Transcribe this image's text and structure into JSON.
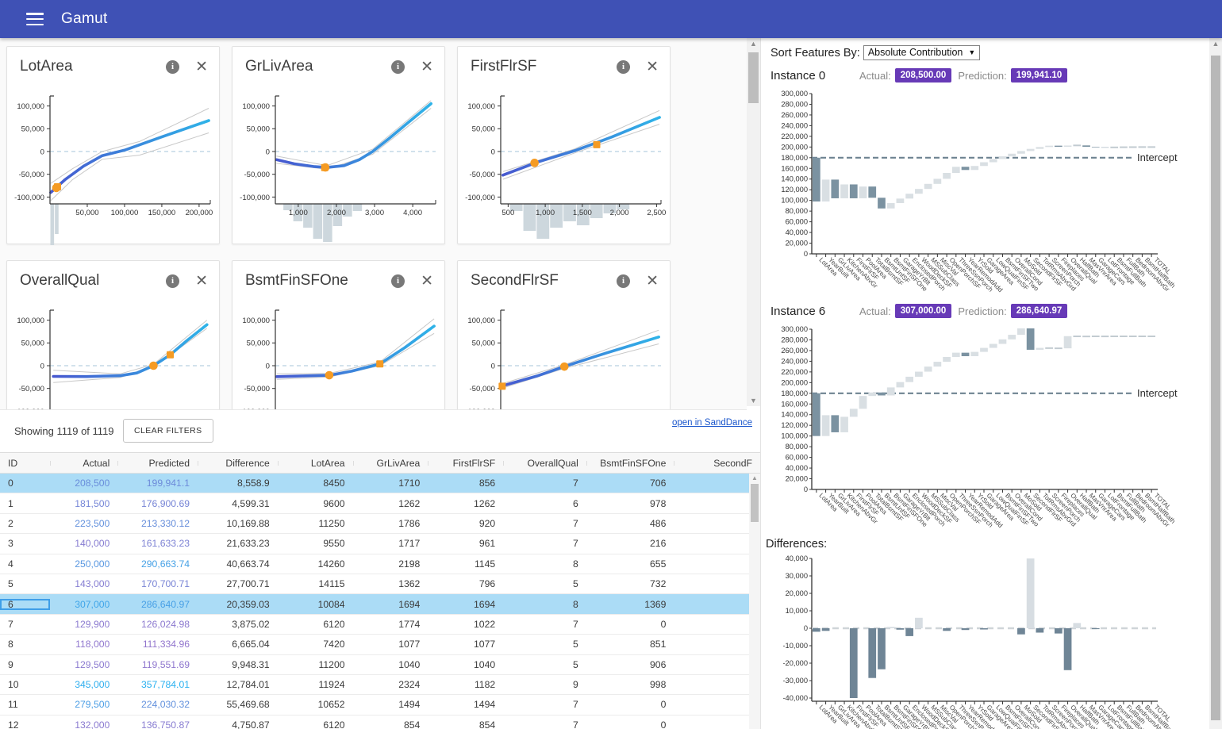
{
  "app": {
    "title": "Gamut"
  },
  "colors": {
    "topbar": "#3f51b5",
    "badge": "#673ab7",
    "highlight_row": "#abdcf6",
    "bar_dark": "#7b92a1",
    "bar_light": "#d9dfe3",
    "bar_flat": "#c2cbd1",
    "intercept_line": "#6d8291",
    "diff_dark": "#6f8596",
    "diff_light": "#d7dde2",
    "orange_marker": "#f59b23",
    "hist": "#cdd7dd",
    "line_start": "#4758cf",
    "line_end": "#2fb3e8",
    "zero_dash": "#c3d9e6",
    "band": "#c8c8c8"
  },
  "feature_cards": [
    {
      "title": "LotArea",
      "x_domain": [
        0,
        215000
      ],
      "x_ticks": [
        50000,
        100000,
        150000,
        200000
      ],
      "y_ticks": [
        100000,
        50000,
        0,
        -50000,
        -100000
      ],
      "line": [
        [
          1000,
          -90000
        ],
        [
          20000,
          -62000
        ],
        [
          45000,
          -32000
        ],
        [
          70000,
          -9000
        ],
        [
          100000,
          3000
        ],
        [
          150000,
          32000
        ],
        [
          213000,
          68000
        ]
      ],
      "band_upper": [
        [
          1000,
          -70000
        ],
        [
          30000,
          -38000
        ],
        [
          70000,
          0
        ],
        [
          120000,
          22000
        ],
        [
          213000,
          95000
        ]
      ],
      "band_lower": [
        [
          1000,
          -108000
        ],
        [
          30000,
          -62000
        ],
        [
          70000,
          -17000
        ],
        [
          120000,
          -8000
        ],
        [
          213000,
          41000
        ]
      ],
      "circle": [
        8450,
        -80000
      ],
      "square": [
        10084,
        -77500
      ],
      "hist": [
        [
          0,
          6000,
          55
        ],
        [
          6000,
          12000,
          38
        ]
      ]
    },
    {
      "title": "GrLivArea",
      "x_domain": [
        400,
        4600
      ],
      "x_ticks": [
        1000,
        2000,
        3000,
        4000
      ],
      "y_ticks": [
        100000,
        50000,
        0,
        -50000,
        -100000
      ],
      "line": [
        [
          430,
          -18000
        ],
        [
          900,
          -27000
        ],
        [
          1400,
          -33000
        ],
        [
          1750,
          -35000
        ],
        [
          2200,
          -31000
        ],
        [
          2600,
          -18000
        ],
        [
          2950,
          0
        ],
        [
          3400,
          30000
        ],
        [
          3900,
          65000
        ],
        [
          4480,
          105000
        ]
      ],
      "band_upper": [
        [
          430,
          -10000
        ],
        [
          1750,
          -31000
        ],
        [
          2950,
          5000
        ],
        [
          4480,
          112000
        ]
      ],
      "band_lower": [
        [
          430,
          -26000
        ],
        [
          1750,
          -39000
        ],
        [
          2950,
          -6000
        ],
        [
          4480,
          95000
        ]
      ],
      "circle": [
        1710,
        -35000
      ],
      "square": [
        1694,
        -35200
      ],
      "hist": [
        [
          600,
          860,
          8
        ],
        [
          860,
          1120,
          22
        ],
        [
          1120,
          1380,
          30
        ],
        [
          1380,
          1640,
          44
        ],
        [
          1640,
          1900,
          48
        ],
        [
          1900,
          2160,
          28
        ],
        [
          2160,
          2420,
          16
        ],
        [
          2420,
          2680,
          9
        ]
      ]
    },
    {
      "title": "FirstFlrSF",
      "x_domain": [
        400,
        2560
      ],
      "x_ticks": [
        500,
        1000,
        1500,
        2000,
        2500
      ],
      "y_ticks": [
        100000,
        50000,
        0,
        -50000,
        -100000
      ],
      "line": [
        [
          430,
          -52000
        ],
        [
          900,
          -23000
        ],
        [
          1400,
          2000
        ],
        [
          1900,
          32000
        ],
        [
          2540,
          75000
        ]
      ],
      "band_upper": [
        [
          430,
          -44000
        ],
        [
          1400,
          6000
        ],
        [
          2540,
          90000
        ]
      ],
      "band_lower": [
        [
          430,
          -61000
        ],
        [
          1400,
          -3000
        ],
        [
          2540,
          60000
        ]
      ],
      "circle": [
        856,
        -25000
      ],
      "square": [
        1694,
        15000
      ],
      "hist": [
        [
          520,
          700,
          9
        ],
        [
          700,
          880,
          34
        ],
        [
          880,
          1060,
          44
        ],
        [
          1060,
          1240,
          30
        ],
        [
          1240,
          1420,
          22
        ],
        [
          1420,
          1600,
          27
        ],
        [
          1600,
          1780,
          18
        ],
        [
          1780,
          1960,
          12
        ],
        [
          1960,
          2140,
          7
        ]
      ]
    },
    {
      "title": "OverallQual",
      "x_domain": [
        0.8,
        10.4
      ],
      "x_ticks": [],
      "y_ticks": [
        100000,
        50000,
        0,
        -50000,
        -100000
      ],
      "line": [
        [
          1,
          -23500
        ],
        [
          3,
          -23800
        ],
        [
          5,
          -22000
        ],
        [
          6,
          -16000
        ],
        [
          7,
          0
        ],
        [
          8,
          24000
        ],
        [
          9,
          55000
        ],
        [
          10.2,
          90000
        ]
      ],
      "band_upper": [
        [
          1,
          -10000
        ],
        [
          5,
          -18000
        ],
        [
          7,
          3000
        ],
        [
          10.2,
          100000
        ]
      ],
      "band_lower": [
        [
          1,
          -37000
        ],
        [
          5,
          -26000
        ],
        [
          7,
          -3000
        ],
        [
          10.2,
          82000
        ]
      ],
      "circle": [
        7,
        0
      ],
      "square": [
        8,
        24000
      ],
      "hist": []
    },
    {
      "title": "BsmtFinSFOne",
      "x_domain": [
        0,
        2100
      ],
      "x_ticks": [],
      "y_ticks": [
        100000,
        50000,
        0,
        -50000,
        -100000
      ],
      "line": [
        [
          20,
          -24000
        ],
        [
          350,
          -22500
        ],
        [
          706,
          -21000
        ],
        [
          1000,
          -12000
        ],
        [
          1369,
          4000
        ],
        [
          1700,
          40000
        ],
        [
          2080,
          87000
        ]
      ],
      "band_upper": [
        [
          20,
          -18000
        ],
        [
          706,
          -17000
        ],
        [
          1369,
          8000
        ],
        [
          2080,
          103000
        ]
      ],
      "band_lower": [
        [
          20,
          -30000
        ],
        [
          706,
          -25000
        ],
        [
          1369,
          0
        ],
        [
          2080,
          71000
        ]
      ],
      "circle": [
        706,
        -21000
      ],
      "square": [
        1369,
        4000
      ],
      "hist": []
    },
    {
      "title": "SecondFlrSF",
      "x_domain": [
        0,
        2150
      ],
      "x_ticks": [],
      "y_ticks": [
        100000,
        50000,
        0,
        -50000,
        -100000
      ],
      "line": [
        [
          10,
          -45000
        ],
        [
          500,
          -22000
        ],
        [
          854,
          -2000
        ],
        [
          1300,
          22000
        ],
        [
          1700,
          42000
        ],
        [
          2120,
          63000
        ]
      ],
      "band_upper": [
        [
          10,
          -40000
        ],
        [
          854,
          2000
        ],
        [
          2120,
          78000
        ]
      ],
      "band_lower": [
        [
          10,
          -50000
        ],
        [
          854,
          -6000
        ],
        [
          2120,
          48000
        ]
      ],
      "circle": [
        854,
        -2000
      ],
      "square": [
        20,
        -45000
      ],
      "hist": []
    }
  ],
  "left_toolbar": {
    "showing_text": "Showing 1119 of 1119",
    "clear_filters_label": "CLEAR FILTERS",
    "sanddance_link": "open in SandDance"
  },
  "table": {
    "columns": [
      "ID",
      "Actual",
      "Predicted",
      "Difference",
      "LotArea",
      "GrLivArea",
      "FirstFlrSF",
      "OverallQual",
      "BsmtFinSFOne",
      "SecondF"
    ],
    "rows": [
      {
        "id": "0",
        "actual": "208,500",
        "predicted": "199,941.1",
        "difference": "8,558.9",
        "lotarea": "8450",
        "grlivarea": "1710",
        "firstflrsf": "856",
        "overallqual": "7",
        "bsmtfinsfone": "706"
      },
      {
        "id": "1",
        "actual": "181,500",
        "predicted": "176,900.69",
        "difference": "4,599.31",
        "lotarea": "9600",
        "grlivarea": "1262",
        "firstflrsf": "1262",
        "overallqual": "6",
        "bsmtfinsfone": "978"
      },
      {
        "id": "2",
        "actual": "223,500",
        "predicted": "213,330.12",
        "difference": "10,169.88",
        "lotarea": "11250",
        "grlivarea": "1786",
        "firstflrsf": "920",
        "overallqual": "7",
        "bsmtfinsfone": "486"
      },
      {
        "id": "3",
        "actual": "140,000",
        "predicted": "161,633.23",
        "difference": "21,633.23",
        "lotarea": "9550",
        "grlivarea": "1717",
        "firstflrsf": "961",
        "overallqual": "7",
        "bsmtfinsfone": "216"
      },
      {
        "id": "4",
        "actual": "250,000",
        "predicted": "290,663.74",
        "difference": "40,663.74",
        "lotarea": "14260",
        "grlivarea": "2198",
        "firstflrsf": "1145",
        "overallqual": "8",
        "bsmtfinsfone": "655"
      },
      {
        "id": "5",
        "actual": "143,000",
        "predicted": "170,700.71",
        "difference": "27,700.71",
        "lotarea": "14115",
        "grlivarea": "1362",
        "firstflrsf": "796",
        "overallqual": "5",
        "bsmtfinsfone": "732"
      },
      {
        "id": "6",
        "actual": "307,000",
        "predicted": "286,640.97",
        "difference": "20,359.03",
        "lotarea": "10084",
        "grlivarea": "1694",
        "firstflrsf": "1694",
        "overallqual": "8",
        "bsmtfinsfone": "1369"
      },
      {
        "id": "7",
        "actual": "129,900",
        "predicted": "126,024.98",
        "difference": "3,875.02",
        "lotarea": "6120",
        "grlivarea": "1774",
        "firstflrsf": "1022",
        "overallqual": "7",
        "bsmtfinsfone": "0"
      },
      {
        "id": "8",
        "actual": "118,000",
        "predicted": "111,334.96",
        "difference": "6,665.04",
        "lotarea": "7420",
        "grlivarea": "1077",
        "firstflrsf": "1077",
        "overallqual": "5",
        "bsmtfinsfone": "851"
      },
      {
        "id": "9",
        "actual": "129,500",
        "predicted": "119,551.69",
        "difference": "9,948.31",
        "lotarea": "11200",
        "grlivarea": "1040",
        "firstflrsf": "1040",
        "overallqual": "5",
        "bsmtfinsfone": "906"
      },
      {
        "id": "10",
        "actual": "345,000",
        "predicted": "357,784.01",
        "difference": "12,784.01",
        "lotarea": "11924",
        "grlivarea": "2324",
        "firstflrsf": "1182",
        "overallqual": "9",
        "bsmtfinsfone": "998"
      },
      {
        "id": "11",
        "actual": "279,500",
        "predicted": "224,030.32",
        "difference": "55,469.68",
        "lotarea": "10652",
        "grlivarea": "1494",
        "firstflrsf": "1494",
        "overallqual": "7",
        "bsmtfinsfone": "0"
      },
      {
        "id": "12",
        "actual": "132,000",
        "predicted": "136,750.87",
        "difference": "4,750.87",
        "lotarea": "6120",
        "grlivarea": "854",
        "firstflrsf": "854",
        "overallqual": "7",
        "bsmtfinsfone": "0"
      }
    ],
    "highlighted_ids": [
      "0",
      "6"
    ],
    "selected_id": "6"
  },
  "right_panel": {
    "sort_label": "Sort Features By:",
    "sort_value": "Absolute Contribution",
    "intercept_label": "Intercept",
    "intercept_value": 180000,
    "features": [
      "LotArea",
      "YearBuilt",
      "GrLivArea",
      "KitchenAbvGr",
      "FirstFlrSF",
      "PoolArea",
      "TotalBsmtSF",
      "BsmtUnfSF",
      "BsmtFinSFOne",
      "GarageYrBlt",
      "EnclosedPorch",
      "WoodDeckSF",
      "MSSubClass",
      "MiscVal",
      "OpenPorchSF",
      "ThreeSsnPorch",
      "YearRemodAdd",
      "YrSold",
      "GarageArea",
      "LowQualFinSF",
      "BsmtFinSFTwo",
      "OverallCond",
      "MoSold",
      "SecondFlrSF",
      "TotRmsAbvGrd",
      "ScreenPorch",
      "Fireplaces",
      "OverallQual",
      "HalfBath",
      "MasVnrArea",
      "GarageCars",
      "LotFrontage",
      "BsmtFullBath",
      "FullBath",
      "BedroomAbvGr",
      "BsmtHalfBath",
      "TOTAL"
    ],
    "y_max": 300000,
    "y_step": 20000,
    "instances": [
      {
        "name": "Instance 0",
        "actual_label": "Actual:",
        "actual": "208,500.00",
        "prediction_label": "Prediction:",
        "prediction": "199,941.10",
        "running_totals": [
          98000,
          139000,
          104000,
          130000,
          104000,
          126000,
          105000,
          85000,
          95000,
          103500,
          112500,
          121500,
          131000,
          140500,
          151500,
          163000,
          157000,
          164500,
          171500,
          177500,
          182500,
          187500,
          192500,
          196500,
          200000,
          202500,
          200500,
          202800,
          203000,
          200500,
          199500,
          198800,
          199300,
          199600,
          199800,
          199941,
          199941
        ]
      },
      {
        "name": "Instance 6",
        "actual_label": "Actual:",
        "actual": "307,000.00",
        "prediction_label": "Prediction:",
        "prediction": "286,640.97",
        "running_totals": [
          100000,
          139000,
          107000,
          136000,
          151000,
          175000,
          181500,
          176000,
          191000,
          201000,
          211000,
          220500,
          230000,
          239000,
          248000,
          256000,
          249500,
          257500,
          265000,
          272500,
          281000,
          289500,
          301500,
          261500,
          265000,
          264600,
          264200,
          287000,
          286600,
          286400,
          286641,
          286500,
          286641,
          286641,
          286641,
          286641,
          286641
        ]
      }
    ],
    "differences": {
      "label": "Differences:",
      "y_max": 40000,
      "y_step": 10000,
      "values": [
        -2000,
        -1500,
        0,
        0,
        -41000,
        0,
        -28500,
        -23500,
        800,
        -800,
        -4500,
        6000,
        0,
        0,
        -1500,
        0,
        -1000,
        0,
        -700,
        0,
        0,
        0,
        -3500,
        40500,
        -2500,
        0,
        -3000,
        -24000,
        3000,
        0,
        -500,
        0,
        0,
        0,
        0,
        0,
        0
      ]
    }
  }
}
